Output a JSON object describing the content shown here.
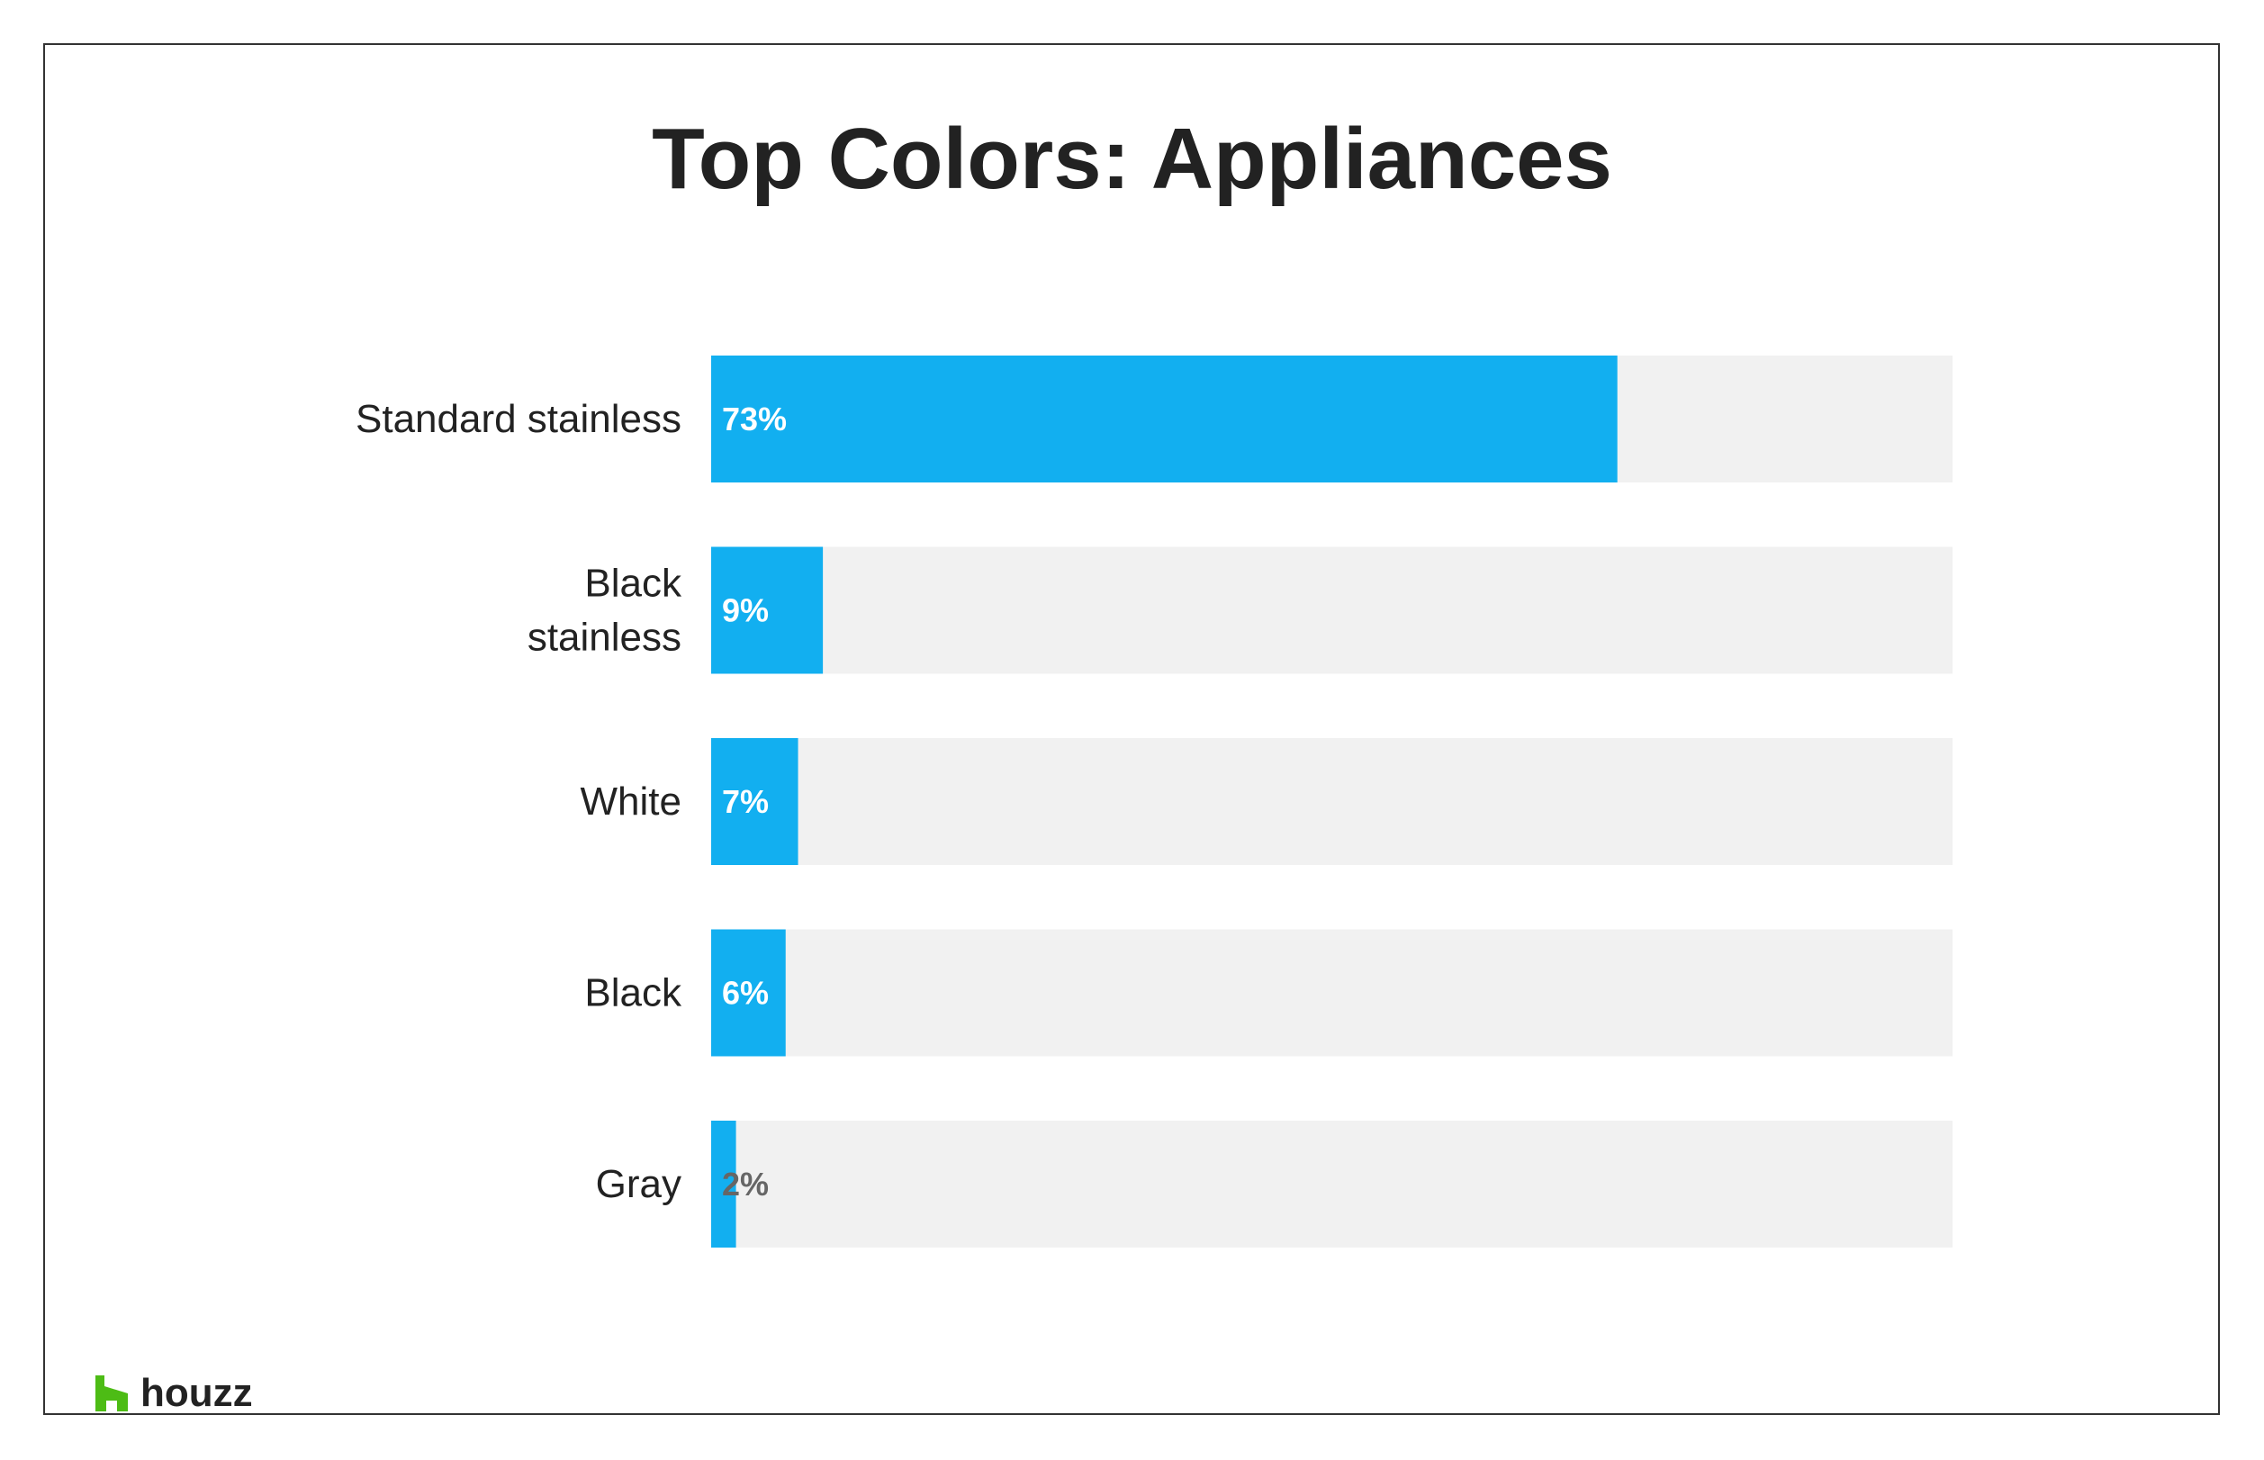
{
  "colors": {
    "bar_fill": "#12aff0",
    "track_fill": "#f1f1f1",
    "value_on_bar": "#ffffff",
    "value_off_bar": "#666666",
    "text": "#222222",
    "brand_green": "#4dbc15"
  },
  "brand": {
    "name": "houzz",
    "icon": "houzz-logo-icon"
  },
  "chart_data": {
    "type": "bar",
    "orientation": "horizontal",
    "title": "Top Colors: Appliances",
    "xlabel": "",
    "ylabel": "",
    "xlim": [
      0,
      100
    ],
    "grid": false,
    "legend": "none",
    "categories": [
      [
        "Standard stainless"
      ],
      [
        "Black",
        "stainless"
      ],
      [
        "White"
      ],
      [
        "Black"
      ],
      [
        "Gray"
      ]
    ],
    "values": [
      73,
      9,
      7,
      6,
      2
    ],
    "value_labels": [
      "73%",
      "9%",
      "7%",
      "6%",
      "2%"
    ]
  }
}
